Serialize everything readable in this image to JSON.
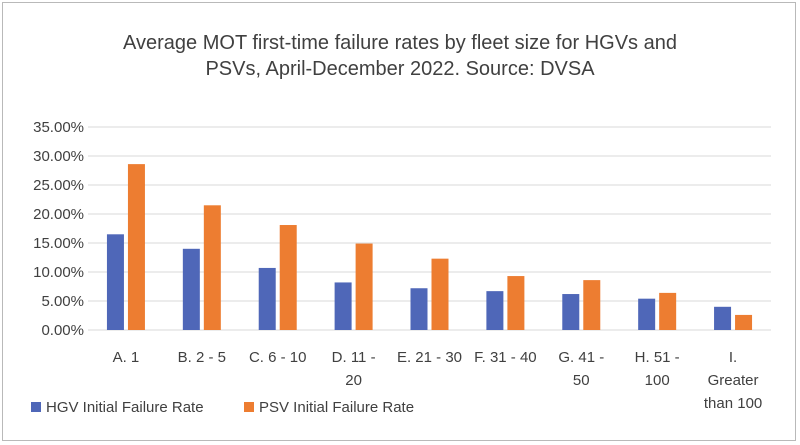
{
  "chart_data": {
    "type": "bar",
    "title_lines": [
      "Average MOT first-time failure rates by fleet size for HGVs and",
      "PSVs, April-December 2022. Source: DVSA"
    ],
    "categories": [
      [
        "A. 1"
      ],
      [
        "B. 2 - 5"
      ],
      [
        "C. 6 - 10"
      ],
      [
        "D. 11 -",
        "20"
      ],
      [
        "E. 21 - 30"
      ],
      [
        "F. 31 - 40"
      ],
      [
        "G. 41 -",
        "50"
      ],
      [
        "H. 51 -",
        "100"
      ],
      [
        "I.",
        "Greater",
        "than 100"
      ]
    ],
    "series": [
      {
        "name": "HGV Initial Failure Rate",
        "color": "#4f67b8",
        "values": [
          16.5,
          14.0,
          10.7,
          8.2,
          7.2,
          6.7,
          6.2,
          5.4,
          4.0
        ]
      },
      {
        "name": "PSV Initial Failure Rate",
        "color": "#ed7d31",
        "values": [
          28.6,
          21.5,
          18.1,
          14.9,
          12.3,
          9.3,
          8.6,
          6.4,
          2.6
        ]
      }
    ],
    "y_ticks": [
      "0.00%",
      "5.00%",
      "10.00%",
      "15.00%",
      "20.00%",
      "25.00%",
      "30.00%",
      "35.00%"
    ],
    "ylim": [
      0,
      35
    ],
    "y_unit": "%",
    "grid": true,
    "legend_position": "bottom-left"
  }
}
